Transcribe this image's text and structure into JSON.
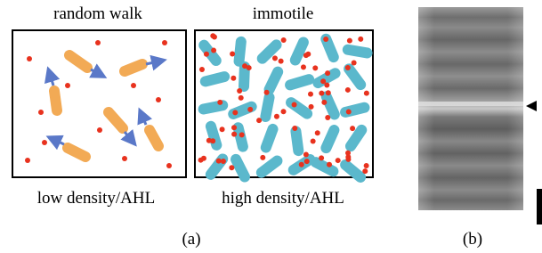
{
  "panel_a": {
    "left_title": "random walk",
    "right_title": "immotile",
    "left_caption": "low density/AHL",
    "right_caption": "high density/AHL",
    "label": "(a)"
  },
  "panel_b": {
    "label": "(b)"
  }
}
